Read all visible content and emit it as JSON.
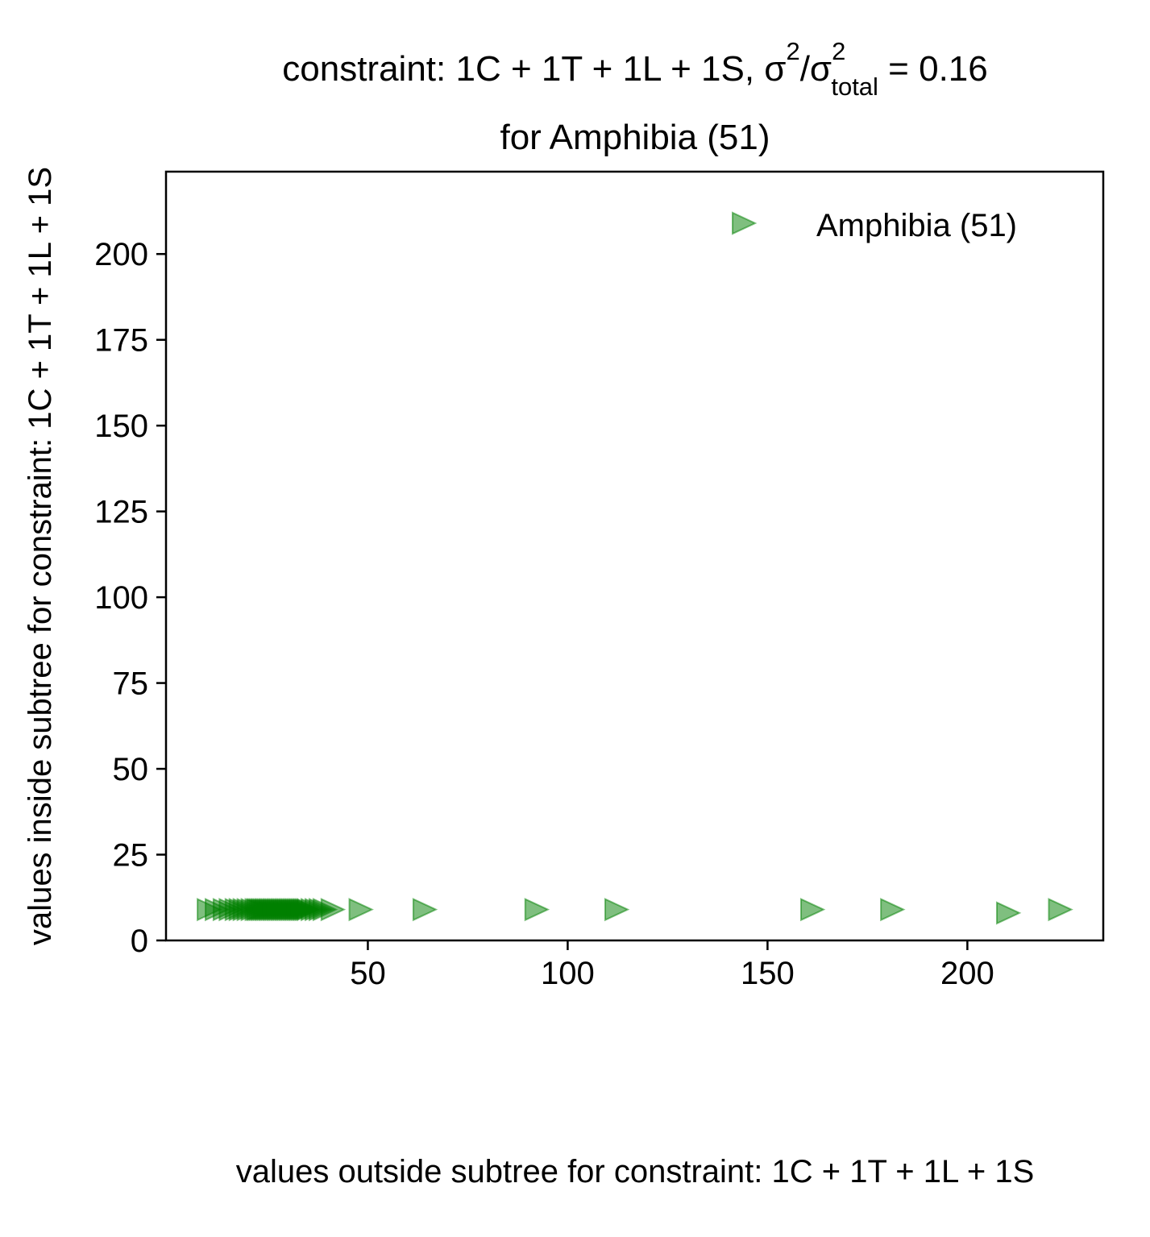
{
  "chart_data": {
    "type": "scatter",
    "title": {
      "prefix": "constraint: 1C + 1T + 1L + 1S, σ",
      "sup1": "2",
      "mid": "/σ",
      "sup2": "2",
      "sub": "total",
      "suffix": " =  0.16",
      "line2": "for Amphibia (51)"
    },
    "xlabel": "values outside subtree for constraint: 1C + 1T + 1L + 1S",
    "ylabel": "values inside subtree for constraint: 1C + 1T + 1L + 1S",
    "xlim": [
      -0.5,
      234
    ],
    "ylim": [
      0,
      224
    ],
    "xticks": [
      50,
      100,
      150,
      200
    ],
    "yticks": [
      0,
      25,
      50,
      75,
      100,
      125,
      150,
      175,
      200
    ],
    "legend": {
      "position": "top-right",
      "label": "Amphibia (51)"
    },
    "series": [
      {
        "name": "Amphibia (51)",
        "marker": "triangle-right",
        "color": "#008000",
        "alpha": 0.5,
        "points": [
          [
            10,
            9
          ],
          [
            12,
            9
          ],
          [
            14,
            9
          ],
          [
            15.5,
            9
          ],
          [
            17,
            9
          ],
          [
            18,
            9
          ],
          [
            19,
            9
          ],
          [
            20,
            9
          ],
          [
            21,
            9
          ],
          [
            22,
            9
          ],
          [
            22.5,
            9
          ],
          [
            23,
            9
          ],
          [
            23.5,
            9
          ],
          [
            24,
            9
          ],
          [
            24.5,
            9
          ],
          [
            25,
            9
          ],
          [
            25.5,
            9
          ],
          [
            26,
            9
          ],
          [
            26.5,
            9
          ],
          [
            27,
            9
          ],
          [
            27.5,
            9
          ],
          [
            28,
            9
          ],
          [
            28.5,
            9
          ],
          [
            29,
            9
          ],
          [
            29.5,
            9
          ],
          [
            30,
            9
          ],
          [
            30.5,
            9
          ],
          [
            31,
            9
          ],
          [
            31.5,
            9
          ],
          [
            32,
            9
          ],
          [
            32.5,
            9
          ],
          [
            33,
            9
          ],
          [
            33.5,
            9
          ],
          [
            34,
            9
          ],
          [
            34.5,
            9
          ],
          [
            35,
            9
          ],
          [
            36,
            9
          ],
          [
            37,
            9
          ],
          [
            38,
            9
          ],
          [
            39,
            9
          ],
          [
            41,
            9
          ],
          [
            48,
            9
          ],
          [
            64,
            9
          ],
          [
            92,
            9
          ],
          [
            112,
            9
          ],
          [
            161,
            9
          ],
          [
            181,
            9
          ],
          [
            210,
            8
          ],
          [
            223,
            9
          ]
        ]
      }
    ]
  }
}
